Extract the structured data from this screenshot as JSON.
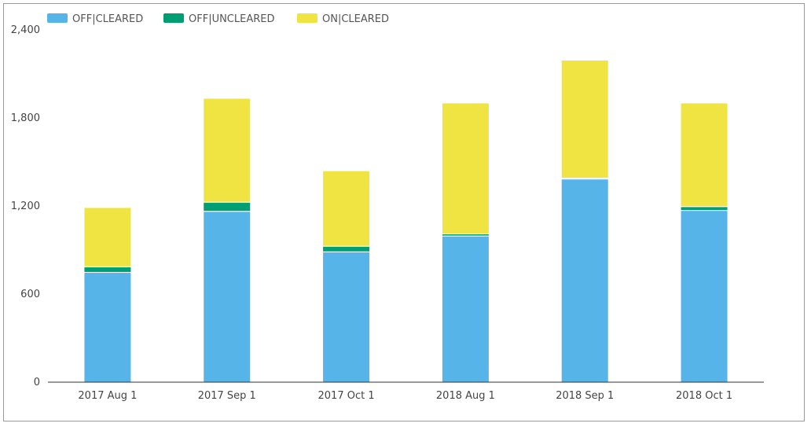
{
  "chart_data": {
    "type": "bar",
    "stacked": true,
    "categories": [
      "2017 Aug 1",
      "2017 Sep 1",
      "2017 Oct 1",
      "2018 Aug 1",
      "2018 Sep 1",
      "2018 Oct 1"
    ],
    "series": [
      {
        "name": "OFF|CLEARED",
        "color": "#56b4e9",
        "values": [
          748,
          1164,
          888,
          996,
          1384,
          1170
        ]
      },
      {
        "name": "OFF|UNCLEARED",
        "color": "#009e73",
        "values": [
          38,
          62,
          38,
          14,
          6,
          26
        ]
      },
      {
        "name": "ON|CLEARED",
        "color": "#f0e442",
        "values": [
          404,
          708,
          514,
          892,
          804,
          706
        ]
      }
    ],
    "ylim": [
      0,
      2400
    ],
    "yticks": [
      0,
      600,
      1200,
      1800,
      2400
    ],
    "ytick_labels": [
      "0",
      "600",
      "1,200",
      "1,800",
      "2,400"
    ],
    "grid": false,
    "legend_position": "top-left",
    "xlabel": "",
    "ylabel": "",
    "title": ""
  }
}
